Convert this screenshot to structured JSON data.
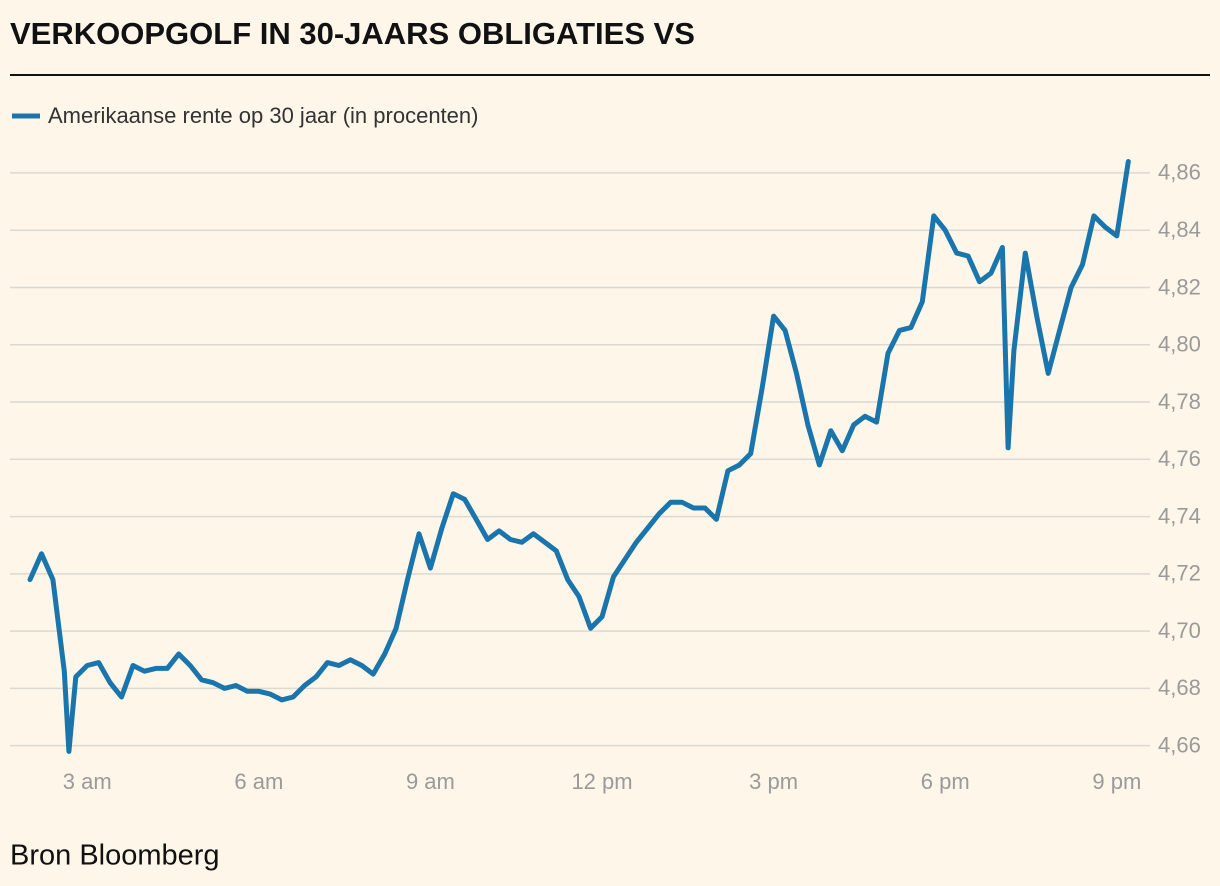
{
  "chart_data": {
    "type": "line",
    "title": "VERKOOPGOLF IN 30-JAARS OBLIGATIES VS",
    "source": "Bron Bloomberg",
    "x": [
      2.0,
      2.2,
      2.4,
      2.6,
      2.68,
      2.8,
      3.0,
      3.2,
      3.4,
      3.6,
      3.8,
      4.0,
      4.2,
      4.4,
      4.6,
      4.8,
      5.0,
      5.2,
      5.4,
      5.6,
      5.8,
      6.0,
      6.2,
      6.4,
      6.6,
      6.8,
      7.0,
      7.2,
      7.4,
      7.6,
      7.8,
      8.0,
      8.2,
      8.4,
      8.6,
      8.8,
      9.0,
      9.2,
      9.4,
      9.6,
      9.8,
      10.0,
      10.2,
      10.4,
      10.6,
      10.8,
      11.0,
      11.2,
      11.4,
      11.6,
      11.8,
      12.0,
      12.2,
      12.4,
      12.6,
      12.8,
      13.0,
      13.2,
      13.4,
      13.6,
      13.8,
      14.0,
      14.2,
      14.4,
      14.6,
      14.8,
      15.0,
      15.2,
      15.4,
      15.6,
      15.8,
      16.0,
      16.2,
      16.4,
      16.6,
      16.8,
      17.0,
      17.2,
      17.4,
      17.6,
      17.8,
      18.0,
      18.2,
      18.4,
      18.6,
      18.8,
      19.0,
      19.1,
      19.2,
      19.4,
      19.6,
      19.8,
      20.0,
      20.2,
      20.4,
      20.6,
      20.8,
      21.0,
      21.2
    ],
    "series": [
      {
        "name": "Amerikaanse rente op 30 jaar (in procenten)",
        "color": "#1a75ad",
        "values": [
          4.718,
          4.727,
          4.718,
          4.686,
          4.658,
          4.684,
          4.688,
          4.689,
          4.682,
          4.677,
          4.688,
          4.686,
          4.687,
          4.687,
          4.692,
          4.688,
          4.683,
          4.682,
          4.68,
          4.681,
          4.679,
          4.679,
          4.678,
          4.676,
          4.677,
          4.681,
          4.684,
          4.689,
          4.688,
          4.69,
          4.688,
          4.685,
          4.692,
          4.701,
          4.718,
          4.734,
          4.722,
          4.736,
          4.748,
          4.746,
          4.739,
          4.732,
          4.735,
          4.732,
          4.731,
          4.734,
          4.731,
          4.728,
          4.718,
          4.712,
          4.701,
          4.705,
          4.719,
          4.725,
          4.731,
          4.736,
          4.741,
          4.745,
          4.745,
          4.743,
          4.743,
          4.739,
          4.756,
          4.758,
          4.762,
          4.785,
          4.81,
          4.805,
          4.79,
          4.772,
          4.758,
          4.77,
          4.763,
          4.772,
          4.775,
          4.773,
          4.797,
          4.805,
          4.806,
          4.815,
          4.845,
          4.84,
          4.832,
          4.831,
          4.822,
          4.825,
          4.834,
          4.764,
          4.798,
          4.832,
          4.81,
          4.79,
          4.805,
          4.82,
          4.828,
          4.845,
          4.841,
          4.838,
          4.864
        ]
      }
    ],
    "xlim": [
      1.65,
      21.58
    ],
    "xticks": [
      {
        "value": 3,
        "label": "3 am"
      },
      {
        "value": 6,
        "label": "6 am"
      },
      {
        "value": 9,
        "label": "9 am"
      },
      {
        "value": 12,
        "label": "12 pm"
      },
      {
        "value": 15,
        "label": "3 pm"
      },
      {
        "value": 18,
        "label": "6 pm"
      },
      {
        "value": 21,
        "label": "9 pm"
      }
    ],
    "ylim": [
      4.655,
      4.868
    ],
    "yticks": [
      {
        "value": 4.66,
        "label": "4,66"
      },
      {
        "value": 4.68,
        "label": "4,68"
      },
      {
        "value": 4.7,
        "label": "4,70"
      },
      {
        "value": 4.72,
        "label": "4,72"
      },
      {
        "value": 4.74,
        "label": "4,74"
      },
      {
        "value": 4.76,
        "label": "4,76"
      },
      {
        "value": 4.78,
        "label": "4,78"
      },
      {
        "value": 4.8,
        "label": "4,80"
      },
      {
        "value": 4.82,
        "label": "4,82"
      },
      {
        "value": 4.84,
        "label": "4,84"
      },
      {
        "value": 4.86,
        "label": "4,86"
      }
    ],
    "grid": true
  }
}
